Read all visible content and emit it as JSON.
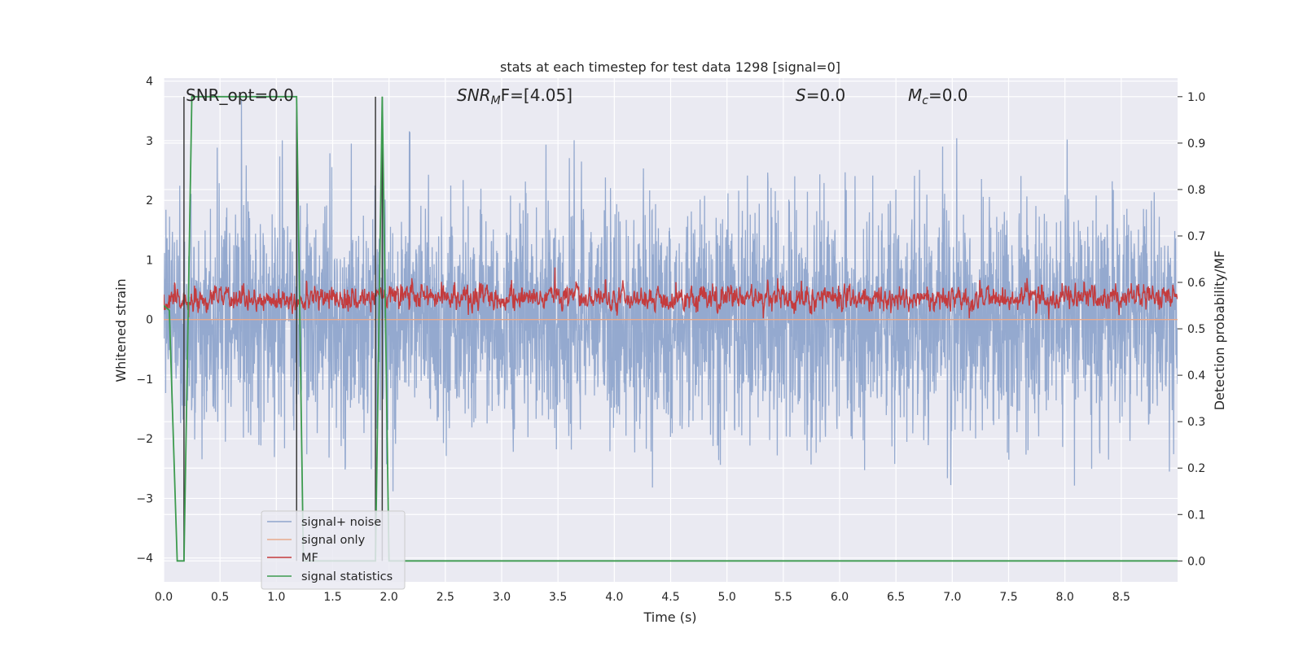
{
  "chart_data": {
    "type": "line",
    "title": "stats at each timestep for test data 1298 [signal=0]",
    "xlabel": "Time (s)",
    "ylabel_left": "Whitened strain",
    "ylabel_right": "Detection probability/MF",
    "xlim": [
      0.0,
      9.0
    ],
    "ylim_left": [
      -4.4,
      4.05
    ],
    "ylim_right": [
      -0.045,
      1.04
    ],
    "x_ticks": [
      "0.0",
      "0.5",
      "1.0",
      "1.5",
      "2.0",
      "2.5",
      "3.0",
      "3.5",
      "4.0",
      "4.5",
      "5.0",
      "5.5",
      "6.0",
      "6.5",
      "7.0",
      "7.5",
      "8.0",
      "8.5"
    ],
    "y_ticks_left": [
      "4",
      "3",
      "2",
      "1",
      "0",
      "−1",
      "−2",
      "−3",
      "−4"
    ],
    "y_ticks_right": [
      "1.0",
      "0.9",
      "0.8",
      "0.7",
      "0.6",
      "0.5",
      "0.4",
      "0.3",
      "0.2",
      "0.1",
      "0.0"
    ],
    "grid": true,
    "legend_position": "lower-left",
    "annotations": {
      "snr_opt": "SNR_opt=0.0",
      "snr_mf_base": "SNR",
      "snr_mf_sub": "M",
      "snr_mf_rest": "F=[4.05]",
      "s_italic": "S",
      "s_rest": "=0.0",
      "mc_base": "M",
      "mc_sub": "c",
      "mc_rest": "=0.0"
    },
    "series": [
      {
        "name": "signal+ noise",
        "color": "#8fa5cc",
        "axis": "left",
        "description_values": "noise ~ N(0, 0.9), range approx [-4, 3.7]"
      },
      {
        "name": "signal only",
        "color": "#e8a98c",
        "axis": "left",
        "values": [
          0.0
        ]
      },
      {
        "name": "MF",
        "color": "#c43b3d",
        "axis": "right",
        "description_values": "approx 0.5–0.63, peaks up to 0.65"
      },
      {
        "name": "signal statistics",
        "color": "#3d9b4f",
        "axis": "right",
        "x": [
          0.0,
          0.05,
          0.12,
          0.18,
          0.25,
          1.18,
          1.24,
          1.88,
          1.94,
          2.0,
          9.0
        ],
        "values": [
          0.55,
          0.54,
          0.0,
          0.0,
          1.0,
          1.0,
          0.0,
          0.0,
          1.0,
          0.0,
          0.0
        ]
      }
    ],
    "vertical_lines_x": [
      0.18,
      1.18,
      1.88,
      1.94
    ]
  }
}
